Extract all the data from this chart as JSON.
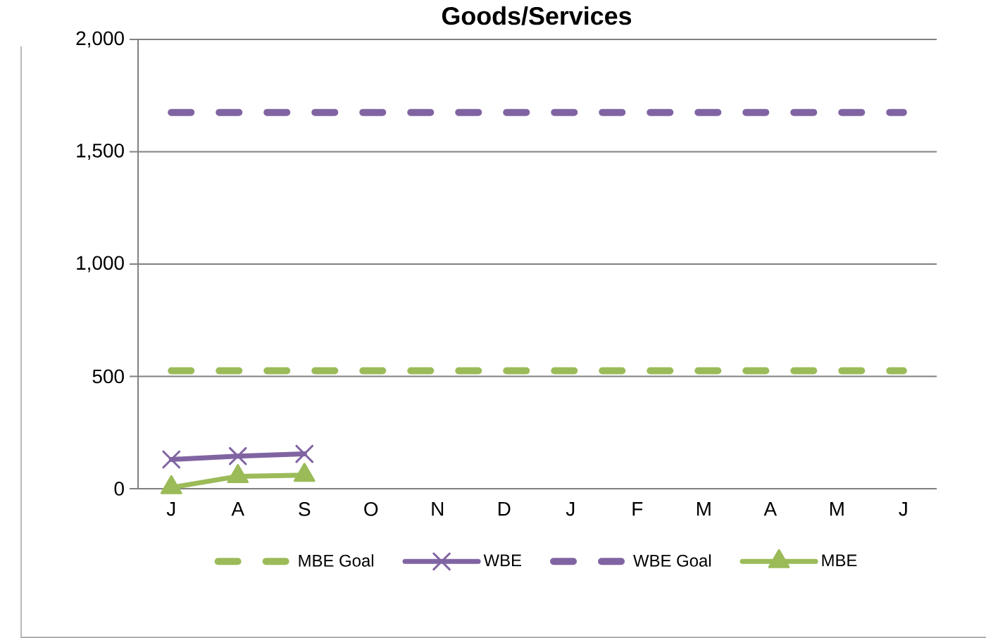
{
  "chart_data": {
    "type": "line",
    "title": "Goods/Services",
    "categories": [
      "J",
      "A",
      "S",
      "O",
      "N",
      "D",
      "J",
      "F",
      "M",
      "A",
      "M",
      "J"
    ],
    "ylim": [
      0,
      2000
    ],
    "yticks": [
      0,
      500,
      {
        "value": 1000,
        "label": "1,000"
      },
      {
        "value": 1500,
        "label": "1,500"
      },
      {
        "value": 2000,
        "label": "2,000"
      }
    ],
    "grid": "y",
    "legend": "bottom",
    "series": [
      {
        "name": "MBE Goal",
        "color": "#9bbb59",
        "line_style": "dashed",
        "marker": "none",
        "values": [
          525,
          525,
          525,
          525,
          525,
          525,
          525,
          525,
          525,
          525,
          525,
          525
        ]
      },
      {
        "name": "WBE",
        "color": "#8064a2",
        "line_style": "solid",
        "marker": "cross",
        "values": [
          130,
          145,
          155,
          null,
          null,
          null,
          null,
          null,
          null,
          null,
          null,
          null
        ]
      },
      {
        "name": "WBE Goal",
        "color": "#8064a2",
        "line_style": "dashed",
        "marker": "none",
        "values": [
          1675,
          1675,
          1675,
          1675,
          1675,
          1675,
          1675,
          1675,
          1675,
          1675,
          1675,
          1675
        ]
      },
      {
        "name": "MBE",
        "color": "#9bbb59",
        "line_style": "solid",
        "marker": "triangle",
        "values": [
          5,
          55,
          60,
          null,
          null,
          null,
          null,
          null,
          null,
          null,
          null,
          null
        ]
      }
    ]
  }
}
